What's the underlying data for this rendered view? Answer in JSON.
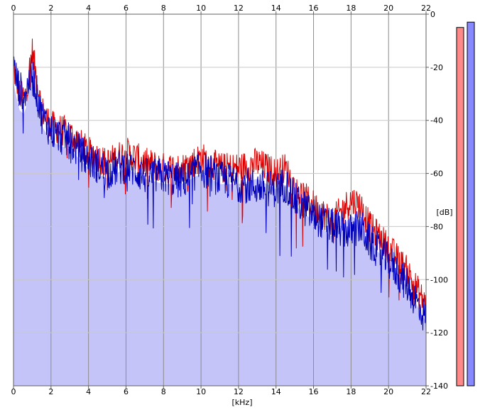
{
  "chart_data": {
    "type": "area",
    "xlabel": "[kHz]",
    "ylabel": "[dB]",
    "xlim": [
      0,
      22
    ],
    "ylim": [
      -140,
      0
    ],
    "x_ticks": [
      "0",
      "2",
      "4",
      "6",
      "8",
      "10",
      "12",
      "14",
      "16",
      "18",
      "20",
      "22"
    ],
    "y_ticks": [
      "0",
      "-20",
      "-40",
      "-60",
      "-80",
      "-100",
      "-120",
      "-140"
    ],
    "grid": true,
    "series": [
      {
        "color": "#dd0000",
        "x": [
          0,
          0.3,
          0.6,
          1.0,
          1.5,
          2,
          3,
          4,
          5,
          6,
          7,
          8,
          9,
          10,
          11,
          12,
          13,
          14,
          14.5,
          15,
          16,
          17,
          18,
          18.5,
          19,
          20,
          21,
          22
        ],
        "y": [
          -20,
          -30,
          -32,
          -14,
          -36,
          -42,
          -45,
          -52,
          -56,
          -52,
          -56,
          -58,
          -58,
          -54,
          -58,
          -58,
          -56,
          -60,
          -58,
          -66,
          -72,
          -78,
          -70,
          -72,
          -80,
          -88,
          -97,
          -110
        ]
      },
      {
        "color": "#0000bb",
        "x": [
          0,
          0.3,
          0.6,
          1.0,
          1.5,
          2,
          3,
          4,
          5,
          6,
          7,
          8,
          9,
          10,
          11,
          12,
          13,
          14,
          14.5,
          15,
          16,
          17,
          18,
          18.5,
          19,
          20,
          21,
          22
        ],
        "y": [
          -20,
          -28,
          -30,
          -22,
          -38,
          -44,
          -48,
          -55,
          -59,
          -57,
          -61,
          -61,
          -63,
          -58,
          -62,
          -64,
          -65,
          -66,
          -64,
          -70,
          -76,
          -80,
          -82,
          -80,
          -86,
          -93,
          -102,
          -115
        ]
      }
    ],
    "fill_color": "#c4c4f8",
    "meters": [
      {
        "color": "#ff8888",
        "level_db": -5
      },
      {
        "color": "#8888ff",
        "level_db": -3
      }
    ]
  }
}
